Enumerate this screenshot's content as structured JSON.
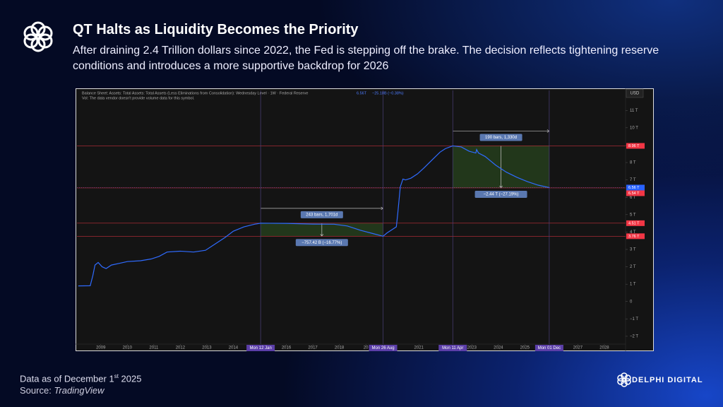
{
  "chart_data": {
    "type": "line",
    "title": "QT Halts as Liquidity Becomes the Priority",
    "subtitle": "After draining 2.4 Trillion dollars since 2022, the Fed is stepping off the brake. The decision reflects tightening reserve conditions and introduces a more supportive backdrop for 2026",
    "legend_title": "Balance Sheet: Assets: Total Assets: Total Assets (Less Eliminations from Consolidation): Wednesday Level · 1W · Federal Reserve",
    "legend_value": "6.56T",
    "legend_change": "−25.18B (−0.38%)",
    "volume_note": "Vol: The data vendor doesn't provide volume data for this symbol.",
    "currency": "USD",
    "x": [
      2008.15,
      2008.6,
      2008.7,
      2008.78,
      2008.9,
      2009.05,
      2009.2,
      2009.4,
      2009.7,
      2010.0,
      2010.5,
      2010.9,
      2011.2,
      2011.5,
      2012.0,
      2012.5,
      2012.95,
      2013.3,
      2013.7,
      2014.0,
      2014.4,
      2014.8,
      2015.03,
      2016.0,
      2017.0,
      2017.8,
      2018.3,
      2018.8,
      2019.3,
      2019.65,
      2019.8,
      2020.0,
      2020.15,
      2020.2,
      2020.3,
      2020.4,
      2020.5,
      2020.7,
      2020.95,
      2021.2,
      2021.5,
      2021.8,
      2022.0,
      2022.28,
      2022.6,
      2022.9,
      2023.15,
      2023.18,
      2023.25,
      2023.5,
      2023.9,
      2024.3,
      2024.7,
      2025.1,
      2025.5,
      2025.92
    ],
    "series": [
      {
        "color": "#2f6bff",
        "values": [
          0.9,
          0.91,
          1.5,
          2.1,
          2.25,
          2.0,
          1.9,
          2.1,
          2.2,
          2.3,
          2.35,
          2.45,
          2.6,
          2.85,
          2.9,
          2.85,
          2.95,
          3.3,
          3.7,
          4.05,
          4.3,
          4.45,
          4.51,
          4.5,
          4.46,
          4.45,
          4.35,
          4.1,
          3.9,
          3.76,
          3.95,
          4.15,
          4.3,
          5.0,
          6.6,
          7.05,
          7.0,
          7.1,
          7.35,
          7.7,
          8.15,
          8.6,
          8.8,
          8.96,
          8.9,
          8.65,
          8.55,
          8.75,
          8.55,
          8.35,
          7.85,
          7.45,
          7.15,
          6.9,
          6.7,
          6.56
        ]
      }
    ],
    "xlim": [
      2008.1,
      2028.8
    ],
    "xticks": [
      2009,
      2010,
      2011,
      2012,
      2013,
      2014,
      2016,
      2017,
      2018,
      {
        "value": 2019,
        "label": "20"
      },
      2021,
      2023,
      2024,
      2025,
      2027,
      2028
    ],
    "ylim": [
      -2.45,
      12.15
    ],
    "yticks": [
      {
        "value": -2,
        "label": "−2 T"
      },
      {
        "value": -1,
        "label": "−1 T"
      },
      0,
      {
        "value": 1,
        "label": "1 T"
      },
      {
        "value": 2,
        "label": "2 T"
      },
      {
        "value": 3,
        "label": "3 T"
      },
      {
        "value": 4,
        "label": "4 T"
      },
      {
        "value": 5,
        "label": "5 T"
      },
      {
        "value": 6,
        "label": "6 T"
      },
      {
        "value": 7,
        "label": "7 T"
      },
      {
        "value": 8,
        "label": "8 T"
      },
      {
        "value": 9,
        "label": "9 T"
      },
      {
        "value": 10,
        "label": "10 T"
      },
      {
        "value": 11,
        "label": "11 T"
      }
    ],
    "grid": false,
    "markers": [
      {
        "x": 2015.03,
        "label": "Mon 12 Jan"
      },
      {
        "x": 2019.65,
        "label": "Mon 26 Aug"
      },
      {
        "x": 2022.28,
        "label": "Mon 11 Apr"
      },
      {
        "x": 2025.92,
        "label": "Mon 01 Dec"
      }
    ],
    "price_tags": [
      {
        "value": 8.96,
        "label": "8.96 T",
        "color": "#f23645"
      },
      {
        "value": 6.56,
        "label": "6.56 T",
        "color": "#2962ff"
      },
      {
        "value": 6.54,
        "label": "6.54 T",
        "color": "#f23645"
      },
      {
        "value": 4.51,
        "label": "4.51 T",
        "color": "#f23645"
      },
      {
        "value": 3.76,
        "label": "3.76 T",
        "color": "#f23645"
      }
    ],
    "measures": [
      {
        "x": [
          2015.03,
          2019.65
        ],
        "y": [
          4.51,
          3.76
        ],
        "bars_label": "243 bars, 1,701d",
        "change_label": "−757.42 B (−16.77%)"
      },
      {
        "x": [
          2022.28,
          2025.92
        ],
        "y": [
          8.96,
          6.54
        ],
        "bars_label": "190 bars, 1,330d",
        "change_label": "−2.44 T (−27.19%)"
      }
    ]
  },
  "footer": {
    "note": "Data as of December 1",
    "note_sup": "st",
    "note_tail": " 2025",
    "source_label": "Source:",
    "source_name": "TradingView"
  },
  "brand": "DELPHI DIGITAL"
}
